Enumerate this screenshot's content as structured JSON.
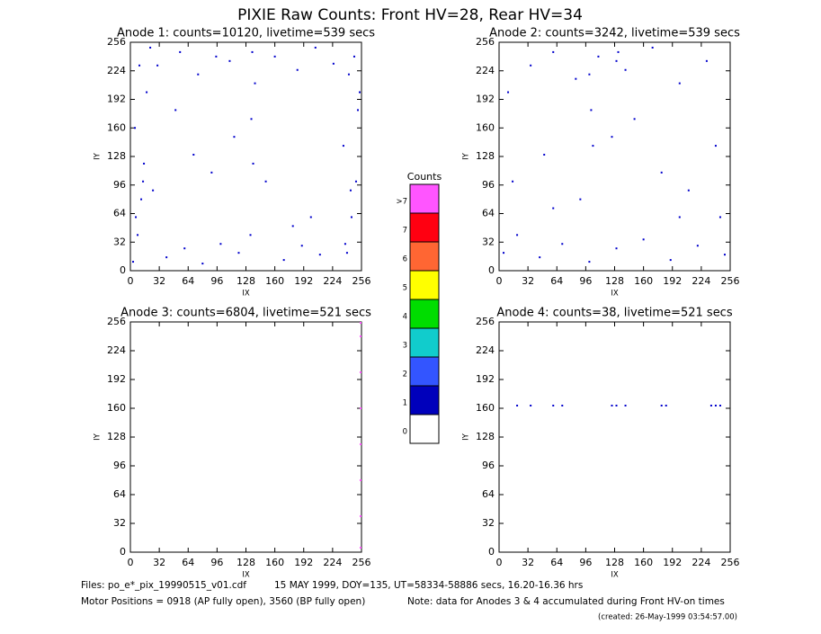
{
  "title": "PIXIE Raw Counts:  Front HV=28, Rear HV=34",
  "footer": {
    "files": "Files: po_e*_pix_19990515_v01.cdf",
    "date": "15 MAY 1999, DOY=135, UT=58334-58886 secs, 16.20-16.36 hrs",
    "motor": "Motor Positions = 0918 (AP fully open), 3560 (BP fully open)",
    "note": "Note: data for Anodes 3 & 4 accumulated during Front HV-on times",
    "created": "(created: 26-May-1999 03:54:57.00)"
  },
  "chart_data": [
    {
      "type": "scatter",
      "title": "Anode 1: counts=10120, livetime=539 secs",
      "xlabel": "IX",
      "ylabel": "IY",
      "xlim": [
        0,
        256
      ],
      "ylim": [
        0,
        256
      ],
      "xticks": [
        0,
        32,
        64,
        96,
        128,
        160,
        192,
        224,
        256
      ],
      "yticks": [
        0,
        32,
        64,
        96,
        128,
        160,
        192,
        224,
        256
      ],
      "series": [
        {
          "color": "#0000cc",
          "x": [
            3,
            8,
            12,
            15,
            5,
            18,
            10,
            22,
            6,
            14,
            240,
            245,
            250,
            236,
            252,
            242,
            248,
            238,
            244,
            254,
            133,
            136,
            138,
            135,
            134,
            40,
            60,
            80,
            100,
            120,
            170,
            190,
            210,
            30,
            55,
            75,
            95,
            110,
            160,
            185,
            205,
            225,
            70,
            90,
            180,
            200,
            115,
            50,
            25,
            150
          ],
          "y": [
            10,
            40,
            80,
            120,
            160,
            200,
            230,
            250,
            60,
            100,
            20,
            60,
            100,
            140,
            180,
            220,
            240,
            30,
            90,
            200,
            40,
            120,
            210,
            245,
            170,
            15,
            25,
            8,
            30,
            20,
            12,
            28,
            18,
            230,
            245,
            220,
            240,
            235,
            240,
            225,
            250,
            232,
            130,
            110,
            50,
            60,
            150,
            180,
            90,
            100
          ]
        }
      ]
    },
    {
      "type": "scatter",
      "title": "Anode 2: counts=3242, livetime=539 secs",
      "xlabel": "IX",
      "ylabel": "IY",
      "xlim": [
        0,
        256
      ],
      "ylim": [
        0,
        256
      ],
      "xticks": [
        0,
        32,
        64,
        96,
        128,
        160,
        192,
        224,
        256
      ],
      "yticks": [
        0,
        32,
        64,
        96,
        128,
        160,
        192,
        224,
        256
      ],
      "series": [
        {
          "color": "#0000cc",
          "x": [
            5,
            20,
            45,
            70,
            100,
            130,
            160,
            190,
            220,
            250,
            10,
            35,
            60,
            85,
            110,
            140,
            170,
            200,
            230,
            245,
            15,
            50,
            90,
            125,
            150,
            180,
            210,
            240,
            100,
            102,
            104,
            130,
            132,
            60,
            200
          ],
          "y": [
            20,
            40,
            15,
            30,
            10,
            25,
            35,
            12,
            28,
            18,
            200,
            230,
            245,
            215,
            240,
            225,
            250,
            210,
            235,
            60,
            100,
            130,
            80,
            150,
            170,
            110,
            90,
            140,
            220,
            180,
            140,
            235,
            245,
            70,
            60
          ]
        }
      ]
    },
    {
      "type": "scatter",
      "title": "Anode 3: counts=6804, livetime=521 secs",
      "xlabel": "IX",
      "ylabel": "IY",
      "xlim": [
        0,
        256
      ],
      "ylim": [
        0,
        256
      ],
      "xticks": [
        0,
        32,
        64,
        96,
        128,
        160,
        192,
        224,
        256
      ],
      "yticks": [
        0,
        32,
        64,
        96,
        128,
        160,
        192,
        224,
        256
      ],
      "series": [
        {
          "color": "#ff55ff",
          "x": [
            255,
            255,
            255,
            255,
            255,
            255,
            255,
            255
          ],
          "y": [
            5,
            40,
            80,
            120,
            160,
            200,
            240,
            255
          ]
        }
      ]
    },
    {
      "type": "scatter",
      "title": "Anode 4: counts=38, livetime=521 secs",
      "xlabel": "IX",
      "ylabel": "IY",
      "xlim": [
        0,
        256
      ],
      "ylim": [
        0,
        256
      ],
      "xticks": [
        0,
        32,
        64,
        96,
        128,
        160,
        192,
        224,
        256
      ],
      "yticks": [
        0,
        32,
        64,
        96,
        128,
        160,
        192,
        224,
        256
      ],
      "series": [
        {
          "color": "#0000cc",
          "x": [
            20,
            35,
            60,
            70,
            125,
            130,
            140,
            180,
            185,
            235,
            240,
            245
          ],
          "y": [
            163,
            163,
            163,
            163,
            163,
            163,
            163,
            163,
            163,
            163,
            163,
            163
          ]
        }
      ]
    },
    {
      "type": "colorbar",
      "title": "Counts",
      "categories": [
        "0",
        "1",
        "2",
        "3",
        "4",
        "5",
        "6",
        "7",
        ">7"
      ],
      "colors": [
        "#ffffff",
        "#0000bb",
        "#3355ff",
        "#11cccc",
        "#00dd00",
        "#ffff00",
        "#ff6633",
        "#ff0011",
        "#ff55ff"
      ]
    }
  ]
}
